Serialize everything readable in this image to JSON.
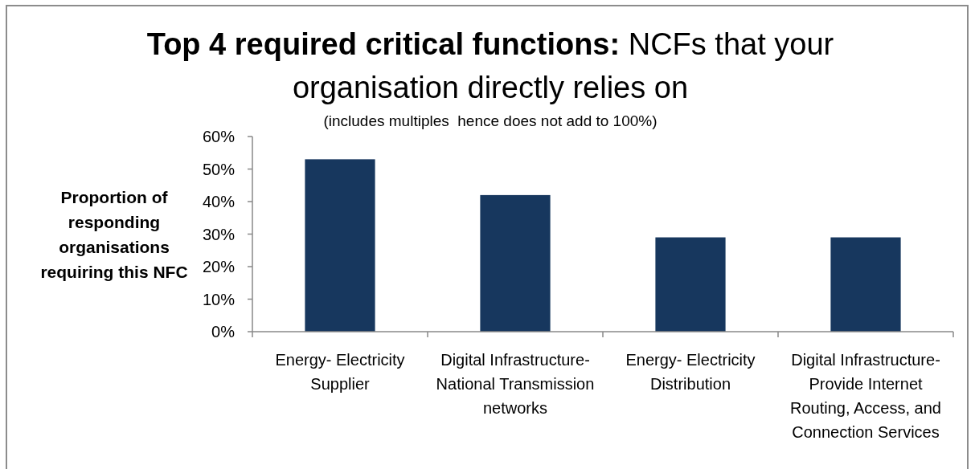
{
  "chart_data": {
    "type": "bar",
    "title": "Top 4 required critical functions: NCFs that your organisation directly relies on",
    "subtitle": "(includes multiples  hence does not add to 100%)",
    "ylabel": "Proportion of responding organisations requiring this NFC",
    "categories": [
      "Energy- Electricity Supplier",
      "Digital Infrastructure- National Transmission networks",
      "Energy- Electricity Distribution",
      "Digital Infrastructure- Provide Internet Routing, Access, and Connection Services"
    ],
    "values": [
      53,
      42,
      29,
      29
    ],
    "color": "#17375e",
    "ylim": [
      0,
      60
    ],
    "yticks": [
      {
        "value": 0,
        "label": "0%"
      },
      {
        "value": 10,
        "label": "10%"
      },
      {
        "value": 20,
        "label": "20%"
      },
      {
        "value": 30,
        "label": "30%"
      },
      {
        "value": 40,
        "label": "40%"
      },
      {
        "value": 50,
        "label": "50%"
      },
      {
        "value": 60,
        "label": "60%"
      }
    ]
  }
}
